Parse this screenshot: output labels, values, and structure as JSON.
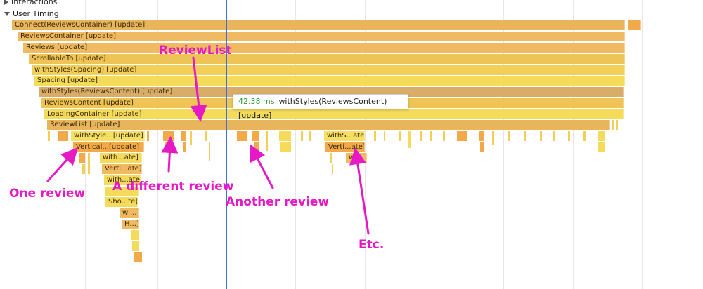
{
  "tracks": {
    "interactions": "Interactions",
    "user_timing": "User Timing"
  },
  "flame_rows": [
    "Connect(ReviewsContainer) [update]",
    "ReviewsContainer [update]",
    "Reviews [update]",
    "ScrollableTo [update]",
    "withStyles(Spacing) [update]",
    "Spacing [update]",
    "withStyles(ReviewsContent) [update]",
    "ReviewsContent [update]",
    "LoadingContainer [update]",
    "ReviewList [update]"
  ],
  "review_bars": {
    "first": [
      "withStyle...[update]",
      "Vertical...[update]",
      "with...ate]",
      "Verti...ate]",
      "with...ate]",
      "Sho...te]",
      "wi...]",
      "H...]"
    ],
    "etc": [
      "withS...ate]",
      "Verti...ate]",
      "w"
    ]
  },
  "tooltip": {
    "duration": "42.38 ms",
    "label": "withStyles(ReviewsContent) [update]"
  },
  "annotations": {
    "review_list": "ReviewList",
    "one_review": "One review",
    "different_review": "A different review",
    "another_review": "Another review",
    "etc": "Etc."
  },
  "colors": {
    "annotation": "#e619c6",
    "cursor_line": "#3f6fd8",
    "duration_text": "#2a9b37"
  }
}
